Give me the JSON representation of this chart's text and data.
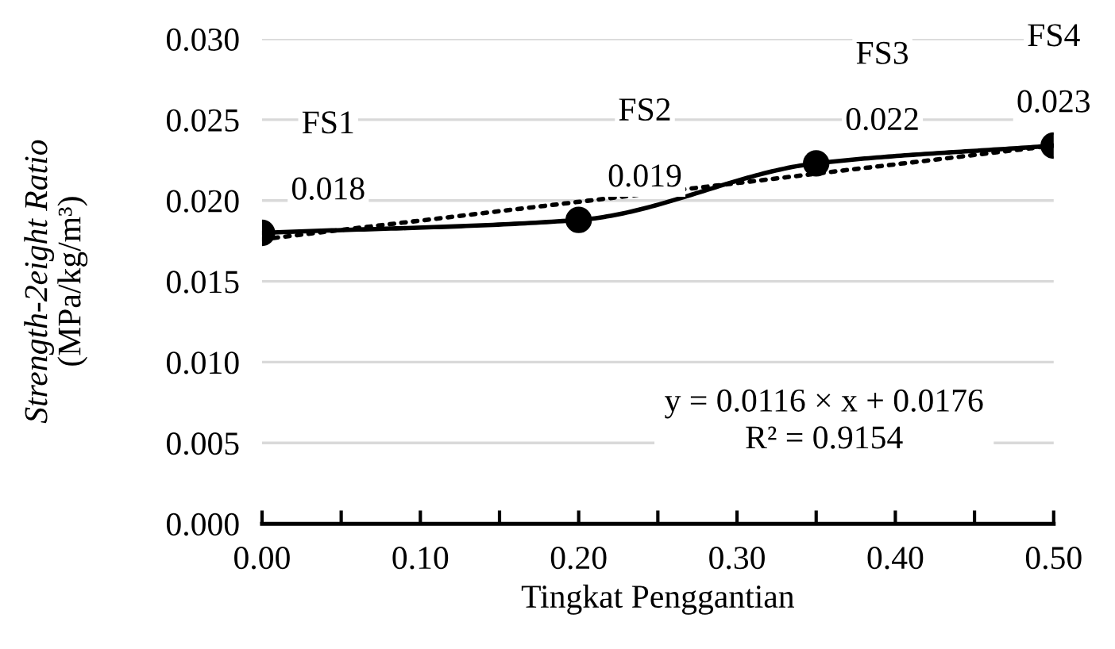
{
  "chart_data": {
    "type": "line",
    "xlabel": "Tingkat Penggantian",
    "ylabel": "Strength-2eight Ratio\n(MPa/kg/m³)",
    "x": [
      0.0,
      0.2,
      0.35,
      0.5
    ],
    "series": [
      {
        "color": "#000000",
        "marker": "circle",
        "line_style": "solid",
        "values": [
          0.018,
          0.0188,
          0.0223,
          0.0234
        ],
        "value_labels": [
          "0.018",
          "0.019",
          "0.022",
          "0.023"
        ]
      },
      {
        "color": "#000000",
        "marker": "none",
        "line_style": "dotted",
        "x": [
          0.0,
          0.5
        ],
        "values": [
          0.0176,
          0.0234
        ]
      }
    ],
    "annotations": [
      "FS1",
      "FS2",
      "FS3",
      "FS4",
      "y = 0.0116 × x + 0.0176\nR² = 0.9154"
    ],
    "xlim": [
      0.0,
      0.5
    ],
    "xticks": [
      {
        "value": 0.0,
        "label": "0.00"
      },
      {
        "value": 0.05,
        "label": null
      },
      {
        "value": 0.1,
        "label": "0.10"
      },
      {
        "value": 0.15,
        "label": null
      },
      {
        "value": 0.2,
        "label": "0.20"
      },
      {
        "value": 0.25,
        "label": null
      },
      {
        "value": 0.3,
        "label": "0.30"
      },
      {
        "value": 0.35,
        "label": null
      },
      {
        "value": 0.4,
        "label": "0.40"
      },
      {
        "value": 0.45,
        "label": null
      },
      {
        "value": 0.5,
        "label": "0.50"
      }
    ],
    "ylim": [
      0.0,
      0.03
    ],
    "yticks": [
      {
        "value": 0.0,
        "label": "0.000"
      },
      {
        "value": 0.005,
        "label": "0.005"
      },
      {
        "value": 0.01,
        "label": "0.010"
      },
      {
        "value": 0.015,
        "label": "0.015"
      },
      {
        "value": 0.02,
        "label": "0.020"
      },
      {
        "value": 0.025,
        "label": "0.025"
      },
      {
        "value": 0.03,
        "label": "0.030"
      }
    ],
    "grid": "y"
  }
}
